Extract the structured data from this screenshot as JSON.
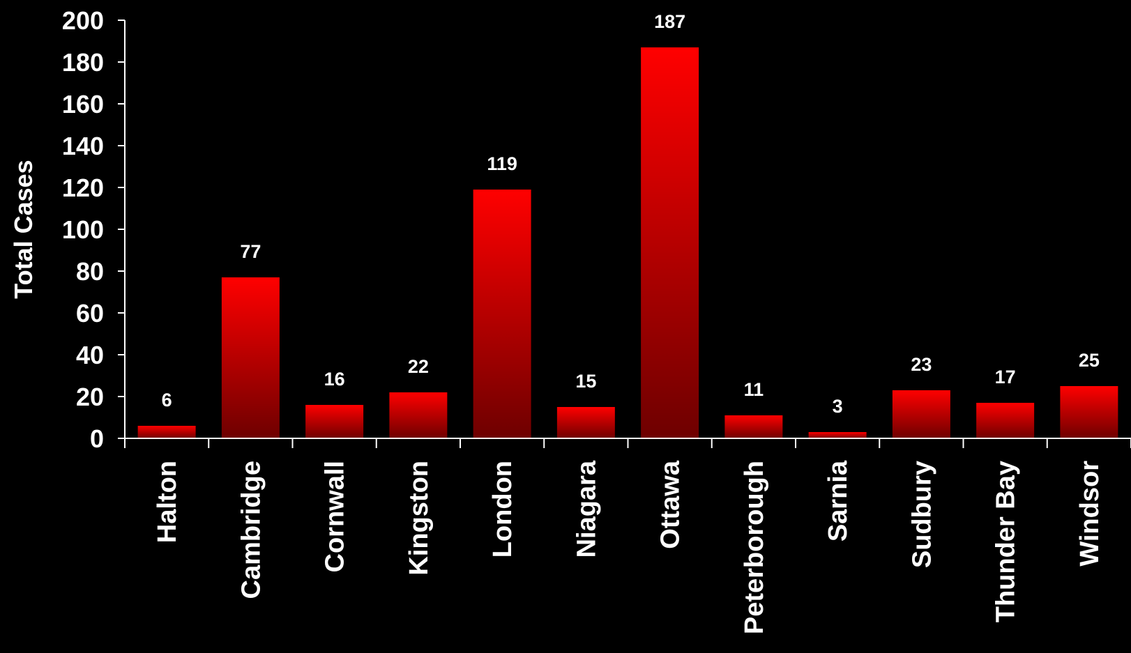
{
  "chart_data": {
    "type": "bar",
    "title": "",
    "xlabel": "",
    "ylabel": "Total Cases",
    "ylim": [
      0,
      200
    ],
    "yticks": [
      0,
      20,
      40,
      60,
      80,
      100,
      120,
      140,
      160,
      180,
      200
    ],
    "categories": [
      "Halton",
      "Cambridge",
      "Cornwall",
      "Kingston",
      "London",
      "Niagara",
      "Ottawa",
      "Peterborough",
      "Sarnia",
      "Sudbury",
      "Thunder Bay",
      "Windsor"
    ],
    "values": [
      6,
      77,
      16,
      22,
      119,
      15,
      187,
      11,
      3,
      23,
      17,
      25
    ],
    "grid": false,
    "legend": "none",
    "colors": {
      "background": "#000000",
      "bar_top": "#ff0000",
      "bar_bottom": "#6e0000",
      "text": "#ffffff",
      "axis": "#ffffff"
    }
  }
}
